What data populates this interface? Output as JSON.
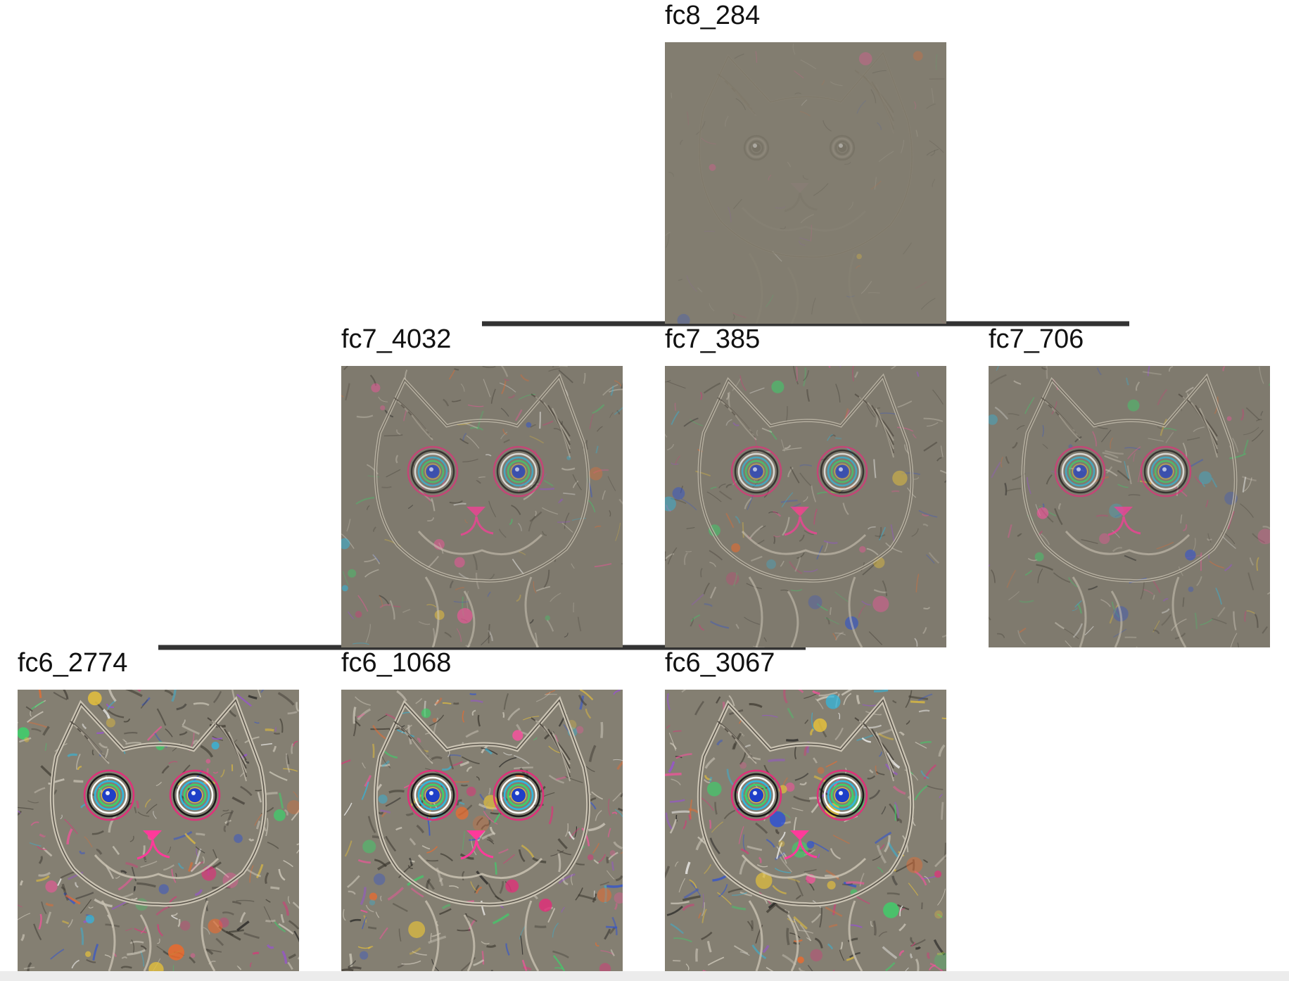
{
  "nodes": [
    {
      "id": "fc8_284",
      "label": "fc8_284",
      "level": 0,
      "intensity": 0.12,
      "base_color": "#827d70"
    },
    {
      "id": "fc7_4032",
      "label": "fc7_4032",
      "level": 1,
      "intensity": 0.55,
      "base_color": "#7f7a6e",
      "parent": "fc8_284"
    },
    {
      "id": "fc7_385",
      "label": "fc7_385",
      "level": 1,
      "intensity": 0.55,
      "base_color": "#7f7a6e",
      "parent": "fc8_284"
    },
    {
      "id": "fc7_706",
      "label": "fc7_706",
      "level": 1,
      "intensity": 0.55,
      "base_color": "#7f7a6e",
      "parent": "fc8_284"
    },
    {
      "id": "fc6_2774",
      "label": "fc6_2774",
      "level": 2,
      "intensity": 1.0,
      "base_color": "#847f72",
      "parent": "fc7_4032"
    },
    {
      "id": "fc6_1068",
      "label": "fc6_1068",
      "level": 2,
      "intensity": 1.0,
      "base_color": "#847f72",
      "parent": "fc7_4032"
    },
    {
      "id": "fc6_3067",
      "label": "fc6_3067",
      "level": 2,
      "intensity": 1.0,
      "base_color": "#847f72",
      "parent": "fc7_4032"
    }
  ],
  "edges": [
    {
      "from": "fc8_284",
      "to": "fc7_4032"
    },
    {
      "from": "fc8_284",
      "to": "fc7_385"
    },
    {
      "from": "fc8_284",
      "to": "fc7_706"
    },
    {
      "from": "fc7_4032",
      "to": "fc6_2774"
    },
    {
      "from": "fc7_4032",
      "to": "fc6_1068"
    },
    {
      "from": "fc7_4032",
      "to": "fc6_3067"
    }
  ],
  "colors": {
    "edge": "#333333",
    "label": "#111111",
    "background": "#ffffff"
  },
  "image_subject": "cat-face-visualization"
}
